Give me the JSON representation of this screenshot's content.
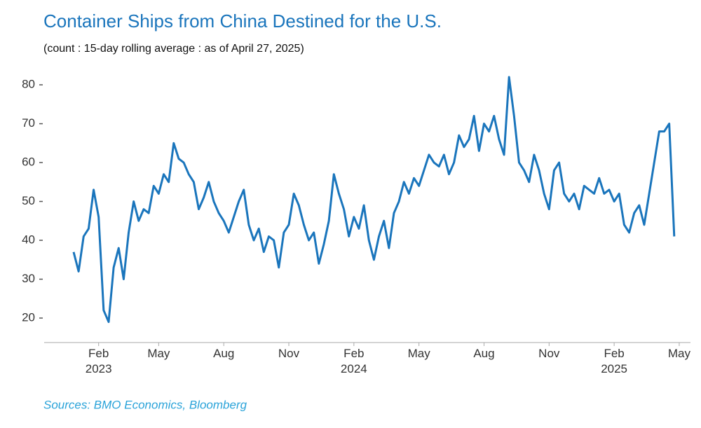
{
  "chart_data": {
    "type": "line",
    "title": "Container Ships from China Destined for the U.S.",
    "subtitle": "(count : 15-day rolling average : as of April 27, 2025)",
    "source": "Sources: BMO Economics, Bloomberg",
    "categories": [
      null,
      null,
      null,
      null,
      null,
      "Feb\n2023",
      null,
      null,
      null,
      null,
      null,
      null,
      null,
      null,
      null,
      null,
      null,
      "May",
      null,
      null,
      null,
      null,
      null,
      null,
      null,
      null,
      null,
      null,
      null,
      null,
      "Aug",
      null,
      null,
      null,
      null,
      null,
      null,
      null,
      null,
      null,
      null,
      null,
      null,
      "Nov",
      null,
      null,
      null,
      null,
      null,
      null,
      null,
      null,
      null,
      null,
      null,
      null,
      "Feb\n2024",
      null,
      null,
      null,
      null,
      null,
      null,
      null,
      null,
      null,
      null,
      null,
      null,
      "May",
      null,
      null,
      null,
      null,
      null,
      null,
      null,
      null,
      null,
      null,
      null,
      null,
      "Aug",
      null,
      null,
      null,
      null,
      null,
      null,
      null,
      null,
      null,
      null,
      null,
      null,
      "Nov",
      null,
      null,
      null,
      null,
      null,
      null,
      null,
      null,
      null,
      null,
      null,
      null,
      "Feb\n2025",
      null,
      null,
      null,
      null,
      null,
      null,
      null,
      null,
      null,
      null,
      null,
      null,
      "May"
    ],
    "values": [
      37,
      32,
      41,
      43,
      53,
      46,
      22,
      19,
      33,
      38,
      30,
      42,
      50,
      45,
      48,
      47,
      54,
      52,
      57,
      55,
      65,
      61,
      60,
      57,
      55,
      48,
      51,
      55,
      50,
      47,
      45,
      42,
      46,
      50,
      53,
      44,
      40,
      43,
      37,
      41,
      40,
      33,
      42,
      44,
      52,
      49,
      44,
      40,
      42,
      34,
      39,
      45,
      57,
      52,
      48,
      41,
      46,
      43,
      49,
      40,
      35,
      41,
      45,
      38,
      47,
      50,
      55,
      52,
      56,
      54,
      58,
      62,
      60,
      59,
      62,
      57,
      60,
      67,
      64,
      66,
      72,
      63,
      70,
      68,
      72,
      66,
      62,
      82,
      72,
      60,
      58,
      55,
      62,
      58,
      52,
      48,
      58,
      60,
      52,
      50,
      52,
      48,
      54,
      53,
      52,
      56,
      52,
      53,
      50,
      52,
      44,
      42,
      47,
      49,
      44,
      52,
      60,
      68,
      68,
      70,
      41,
      null
    ],
    "color": "#1a75bc",
    "ylim": [
      13.7,
      84.7
    ],
    "yticks": [
      20,
      30,
      40,
      50,
      60,
      70,
      80
    ]
  }
}
